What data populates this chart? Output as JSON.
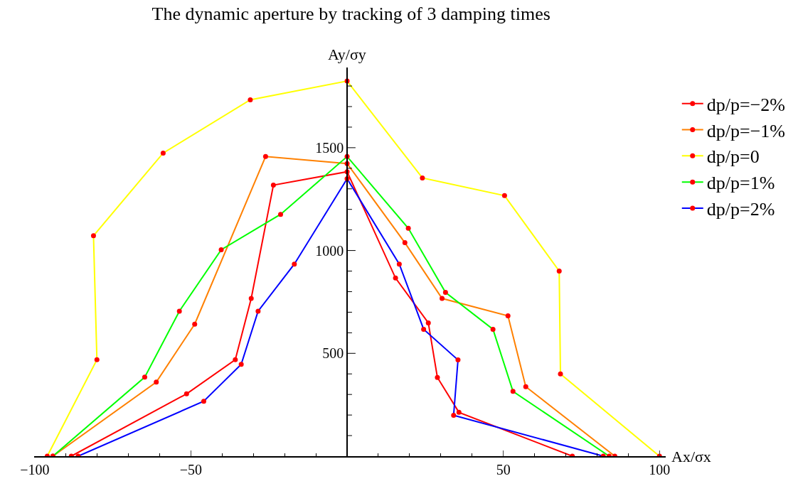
{
  "chart_data": {
    "type": "line",
    "title": "The dynamic aperture by tracking of 3 damping times",
    "xlabel": "Ax/σx",
    "ylabel": "Ay/σy",
    "xlim": [
      -100.2,
      102
    ],
    "ylim": [
      0,
      1890
    ],
    "xticks": [
      {
        "value": -100,
        "label": "−100"
      },
      {
        "value": -50,
        "label": "−50"
      },
      50,
      100
    ],
    "yticks": [
      500,
      1000,
      1500
    ],
    "marker": "circle",
    "legend": "right",
    "series": [
      {
        "name": "dp/p=−2%",
        "color": "#ff0000",
        "x": [
          -88.3,
          -51.4,
          -35.8,
          -30.7,
          -23.6,
          0,
          15.5,
          26.0,
          28.9,
          35.8,
          72.1
        ],
        "values": [
          0,
          303,
          469,
          767,
          1318,
          1383,
          866,
          648,
          383,
          213,
          0
        ]
      },
      {
        "name": "dp/p=−1%",
        "color": "#ff8000",
        "x": [
          -94.2,
          -61.1,
          -48.8,
          -26.1,
          0,
          18.5,
          30.4,
          51.5,
          57.2,
          85.7
        ],
        "values": [
          0,
          360,
          642,
          1457,
          1423,
          1038,
          767,
          682,
          338,
          0
        ]
      },
      {
        "name": "dp/p=0",
        "color": "#ffff00",
        "x": [
          -96.0,
          -80.1,
          -81.2,
          -58.9,
          -31.0,
          0,
          24.1,
          50.4,
          67.9,
          68.3,
          100
        ],
        "values": [
          0,
          469,
          1072,
          1474,
          1733,
          1824,
          1353,
          1267,
          900,
          400,
          0
        ]
      },
      {
        "name": "dp/p=1%",
        "color": "#00ff00",
        "x": [
          -94.2,
          -64.8,
          -53.7,
          -40.3,
          -21.3,
          0,
          19.6,
          31.5,
          46.7,
          53.1,
          83.9
        ],
        "values": [
          0,
          384,
          705,
          1004,
          1176,
          1457,
          1108,
          796,
          617,
          315,
          0
        ]
      },
      {
        "name": "dp/p=2%",
        "color": "#0000ff",
        "x": [
          -86.1,
          -45.9,
          -33.9,
          -28.5,
          -16.9,
          0,
          16.7,
          24.5,
          35.5,
          34.1,
          82.0
        ],
        "values": [
          0,
          267,
          447,
          705,
          934,
          1349,
          934,
          617,
          468,
          199,
          0
        ]
      }
    ]
  }
}
